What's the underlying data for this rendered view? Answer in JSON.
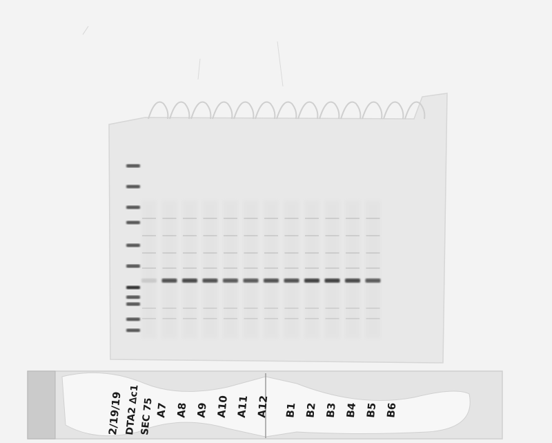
{
  "gel": {
    "ladder_bands": 11,
    "lanes": [
      {
        "label": "A7",
        "band_strength": 0.15
      },
      {
        "label": "A8",
        "band_strength": 0.85
      },
      {
        "label": "A9",
        "band_strength": 0.9
      },
      {
        "label": "A10",
        "band_strength": 0.85
      },
      {
        "label": "A11",
        "band_strength": 0.8
      },
      {
        "label": "A12",
        "band_strength": 0.8
      },
      {
        "label": "B1",
        "band_strength": 0.85
      },
      {
        "label": "B2",
        "band_strength": 0.85
      },
      {
        "label": "B3",
        "band_strength": 0.95
      },
      {
        "label": "B4",
        "band_strength": 0.95
      },
      {
        "label": "B5",
        "band_strength": 0.9
      },
      {
        "label": "B6",
        "band_strength": 0.8
      }
    ]
  },
  "labels": {
    "date": "2/19/19",
    "sample": "DTA2 ∆c1",
    "method": "SEC 75",
    "lanes_written": [
      "A7",
      "A8",
      "A9",
      "A10",
      "A11",
      "A12",
      "B1",
      "B2",
      "B3",
      "B4",
      "B5",
      "B6"
    ]
  },
  "colors": {
    "background": "#f2f2f2",
    "gel": "#e9e9e9",
    "band": "#3a3a3a",
    "ink": "#1a1a1a"
  }
}
